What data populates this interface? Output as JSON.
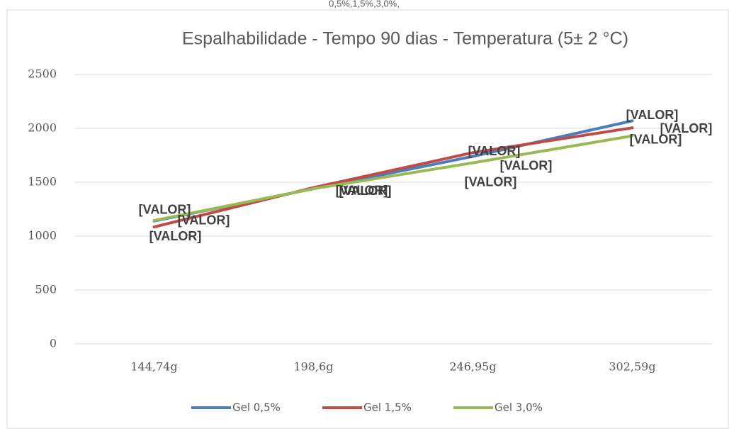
{
  "header": "0,5%,1,5%,3,0%,",
  "chart_data": {
    "type": "line",
    "title": "Espalhabilidade - Tempo 90 dias - Temperatura (5± 2 °C)",
    "categories": [
      "144,74g",
      "198,6g",
      "246,95g",
      "302,59g"
    ],
    "series": [
      {
        "name": "Gel 0,5%",
        "color": "#4a7ebb",
        "values": [
          1140,
          1440,
          1740,
          2070
        ],
        "value_labels": [
          "[VALOR]",
          "[VALOR]",
          "[VALOR]",
          "[VALOR]"
        ]
      },
      {
        "name": "Gel 1,5%",
        "color": "#be4b48",
        "values": [
          1085,
          1450,
          1775,
          2005
        ],
        "value_labels": [
          "[VALOR]",
          "[VALOR]",
          "[VALOR]",
          "[VALOR]"
        ]
      },
      {
        "name": "Gel 3,0%",
        "color": "#98b954",
        "values": [
          1145,
          1440,
          1680,
          1930
        ],
        "value_labels": [
          "[VALOR]",
          "[VALOR]",
          "[VALOR]",
          "[VALOR]"
        ]
      }
    ],
    "ylim": [
      0,
      2500
    ],
    "yticks": [
      0,
      500,
      1000,
      1500,
      2000,
      2500
    ],
    "grid": true,
    "legend": "bottom"
  }
}
